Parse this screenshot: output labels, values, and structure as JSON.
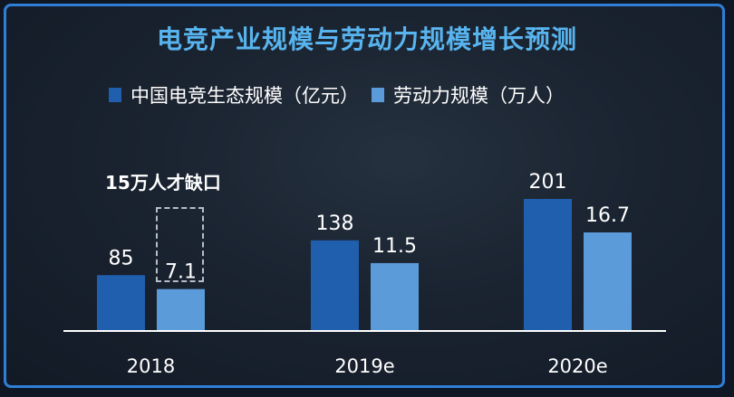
{
  "chart_data": {
    "type": "bar",
    "title": "电竞产业规模与劳动力规模增长预测",
    "categories": [
      "2018",
      "2019e",
      "2020e"
    ],
    "series": [
      {
        "name": "中国电竞生态规模（亿元）",
        "values": [
          85,
          138,
          201
        ],
        "value_labels": [
          "85",
          "138",
          "201"
        ],
        "color": "#1f5fae"
      },
      {
        "name": "劳动力规模（万人）",
        "values": [
          7.1,
          11.5,
          16.7
        ],
        "value_labels": [
          "7.1",
          "11.5",
          "16.7"
        ],
        "color": "#5b9bd9"
      }
    ],
    "annotation": "15万人才缺口",
    "grid": false,
    "legend_position": "top"
  },
  "colors": {
    "title": "#58b4ee",
    "frame_border": "#2f7fd6",
    "axis": "#ffffff",
    "text": "#ffffff"
  }
}
